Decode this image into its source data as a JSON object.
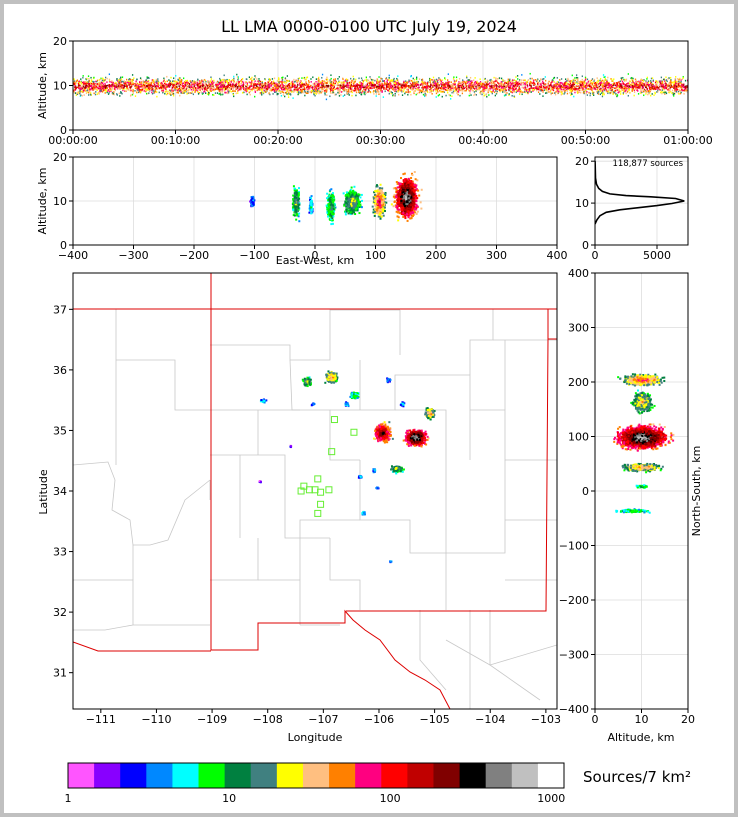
{
  "title": "LL LMA 0000-0100 UTC July 19, 2024",
  "colorbar": {
    "label": "Sources/7 km²",
    "ticks": [
      "1",
      "10",
      "100",
      "1000"
    ],
    "colors": [
      "#ff55ff",
      "#8800ff",
      "#0000ff",
      "#0088ff",
      "#00ffff",
      "#00ff00",
      "#008040",
      "#408080",
      "#ffff00",
      "#ffbf80",
      "#ff8000",
      "#ff0080",
      "#ff0000",
      "#c00000",
      "#800000",
      "#000000",
      "#808080",
      "#c0c0c0",
      "#ffffff"
    ]
  },
  "chart_data": [
    {
      "id": "time-height",
      "type": "heatmap",
      "ylabel": "Altitude, km",
      "ylim": [
        0,
        20
      ],
      "xlim": [
        "00:00:00",
        "01:00:00"
      ],
      "xticks": [
        "00:00:00",
        "00:10:00",
        "00:20:00",
        "00:30:00",
        "00:40:00",
        "00:50:00",
        "01:00:00"
      ],
      "yticks": [
        "0",
        "10",
        "20"
      ],
      "description_values": {
        "core_altitude_km": 10,
        "layer_bottom_km": 5,
        "layer_top_km": 16
      }
    },
    {
      "id": "ew-altitude",
      "type": "heatmap",
      "xlabel": "East-West, km",
      "ylabel": "Altitude, km",
      "xlim": [
        -400,
        400
      ],
      "ylim": [
        0,
        20
      ],
      "xticks": [
        "−400",
        "−300",
        "−200",
        "−100",
        "0",
        "100",
        "200",
        "300",
        "400"
      ],
      "yticks": [
        "0",
        "10",
        "20"
      ],
      "clusters": [
        {
          "x": -105,
          "y": 10,
          "rx": 5,
          "ry": 2,
          "level": 3
        },
        {
          "x": -33,
          "y": 10,
          "rx": 8,
          "ry": 5,
          "level": 8
        },
        {
          "x": -8,
          "y": 9,
          "rx": 4,
          "ry": 3,
          "level": 5
        },
        {
          "x": 25,
          "y": 9,
          "rx": 10,
          "ry": 5,
          "level": 7
        },
        {
          "x": 60,
          "y": 10,
          "rx": 20,
          "ry": 4,
          "level": 8
        },
        {
          "x": 105,
          "y": 10,
          "rx": 14,
          "ry": 5,
          "level": 12
        },
        {
          "x": 150,
          "y": 11,
          "rx": 28,
          "ry": 7,
          "level": 17
        }
      ]
    },
    {
      "id": "altitude-histogram",
      "type": "line",
      "annotation": "118,877 sources",
      "xlim": [
        0,
        7500
      ],
      "ylim": [
        0,
        21
      ],
      "xticks": [
        "0",
        "5000"
      ],
      "yticks": [
        "0",
        "10",
        "20"
      ],
      "points": [
        [
          0,
          5
        ],
        [
          150,
          6
        ],
        [
          400,
          7
        ],
        [
          900,
          7.8
        ],
        [
          2000,
          8.4
        ],
        [
          3500,
          8.9
        ],
        [
          5000,
          9.4
        ],
        [
          6200,
          9.9
        ],
        [
          7200,
          10.5
        ],
        [
          6500,
          11.1
        ],
        [
          4500,
          11.5
        ],
        [
          2500,
          11.8
        ],
        [
          1200,
          12.2
        ],
        [
          600,
          12.8
        ],
        [
          300,
          13.5
        ],
        [
          120,
          14.5
        ],
        [
          40,
          16
        ],
        [
          10,
          20
        ]
      ]
    },
    {
      "id": "plan-view",
      "type": "scatter",
      "xlabel": "Longitude",
      "ylabel": "Latitude",
      "xlim": [
        -111.5,
        -102.8
      ],
      "ylim": [
        30.4,
        37.6
      ],
      "xticks": [
        "−111",
        "−110",
        "−109",
        "−108",
        "−107",
        "−106",
        "−105",
        "−104",
        "−103"
      ],
      "yticks": [
        "31",
        "32",
        "33",
        "34",
        "35",
        "36",
        "37"
      ],
      "storm_cells": [
        {
          "lon": -107.3,
          "lat": 35.82,
          "rx": 0.12,
          "ry": 0.1,
          "level": 8
        },
        {
          "lon": -106.87,
          "lat": 35.9,
          "rx": 0.15,
          "ry": 0.14,
          "level": 10
        },
        {
          "lon": -106.45,
          "lat": 35.6,
          "rx": 0.12,
          "ry": 0.08,
          "level": 6
        },
        {
          "lon": -107.2,
          "lat": 35.45,
          "rx": 0.04,
          "ry": 0.03,
          "level": 3
        },
        {
          "lon": -106.6,
          "lat": 35.45,
          "rx": 0.06,
          "ry": 0.05,
          "level": 4
        },
        {
          "lon": -108.1,
          "lat": 35.5,
          "rx": 0.08,
          "ry": 0.04,
          "level": 4
        },
        {
          "lon": -105.85,
          "lat": 35.85,
          "rx": 0.05,
          "ry": 0.05,
          "level": 3
        },
        {
          "lon": -105.6,
          "lat": 35.45,
          "rx": 0.06,
          "ry": 0.05,
          "level": 4
        },
        {
          "lon": -105.1,
          "lat": 35.3,
          "rx": 0.12,
          "ry": 0.14,
          "level": 10
        },
        {
          "lon": -105.95,
          "lat": 34.97,
          "rx": 0.22,
          "ry": 0.22,
          "level": 15
        },
        {
          "lon": -105.35,
          "lat": 34.9,
          "rx": 0.28,
          "ry": 0.2,
          "level": 17
        },
        {
          "lon": -105.7,
          "lat": 34.38,
          "rx": 0.16,
          "ry": 0.08,
          "level": 8
        },
        {
          "lon": -106.1,
          "lat": 34.35,
          "rx": 0.04,
          "ry": 0.04,
          "level": 4
        },
        {
          "lon": -106.35,
          "lat": 34.25,
          "rx": 0.05,
          "ry": 0.04,
          "level": 3
        },
        {
          "lon": -106.05,
          "lat": 34.07,
          "rx": 0.04,
          "ry": 0.03,
          "level": 3
        },
        {
          "lon": -106.3,
          "lat": 33.65,
          "rx": 0.05,
          "ry": 0.05,
          "level": 4
        },
        {
          "lon": -108.15,
          "lat": 34.17,
          "rx": 0.02,
          "ry": 0.02,
          "level": 2
        },
        {
          "lon": -107.6,
          "lat": 34.75,
          "rx": 0.02,
          "ry": 0.02,
          "level": 2
        },
        {
          "lon": -105.8,
          "lat": 32.85,
          "rx": 0.03,
          "ry": 0.02,
          "level": 3
        }
      ],
      "stations": [
        [
          -106.8,
          35.18
        ],
        [
          -106.45,
          34.97
        ],
        [
          -106.85,
          34.65
        ],
        [
          -107.1,
          34.2
        ],
        [
          -107.35,
          34.08
        ],
        [
          -107.4,
          34.0
        ],
        [
          -107.25,
          34.02
        ],
        [
          -107.15,
          34.02
        ],
        [
          -107.05,
          33.98
        ],
        [
          -106.9,
          34.02
        ],
        [
          -107.05,
          33.78
        ],
        [
          -107.1,
          33.63
        ]
      ]
    },
    {
      "id": "altitude-ns",
      "type": "heatmap",
      "xlabel": "Altitude, km",
      "ylabel": "North-South, km",
      "xlim": [
        0,
        20
      ],
      "ylim": [
        -400,
        400
      ],
      "xticks": [
        "0",
        "10",
        "20"
      ],
      "yticks": [
        "−400",
        "−300",
        "−200",
        "−100",
        "0",
        "100",
        "200",
        "300",
        "400"
      ],
      "clusters": [
        {
          "x": 10,
          "y": 205,
          "rx": 6,
          "ry": 14,
          "level": 11
        },
        {
          "x": 10,
          "y": 165,
          "rx": 3,
          "ry": 25,
          "level": 9
        },
        {
          "x": 10,
          "y": 100,
          "rx": 8,
          "ry": 30,
          "level": 17
        },
        {
          "x": 10,
          "y": 45,
          "rx": 6,
          "ry": 10,
          "level": 10
        },
        {
          "x": 10,
          "y": 10,
          "rx": 2,
          "ry": 4,
          "level": 6
        },
        {
          "x": 8,
          "y": -35,
          "rx": 5,
          "ry": 4,
          "level": 6
        }
      ]
    }
  ]
}
